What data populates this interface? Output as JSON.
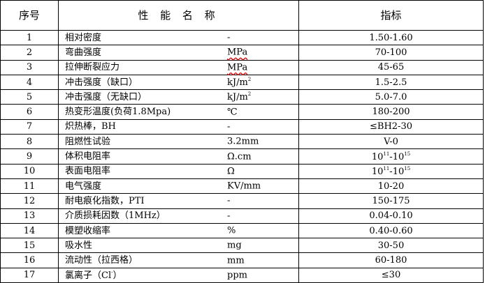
{
  "header": {
    "index": "序号",
    "property": "性 能 名 称",
    "spec": "指标"
  },
  "rows": [
    {
      "no": "1",
      "name": "相对密度",
      "unit": "-",
      "value": "1.50-1.60"
    },
    {
      "no": "2",
      "name": "弯曲强度",
      "unit": "MPa",
      "unit_spellcheck": true,
      "value": "70-100"
    },
    {
      "no": "3",
      "name": "拉伸断裂应力",
      "unit": "MPa",
      "unit_spellcheck": true,
      "value": "45-65"
    },
    {
      "no": "4",
      "name": "冲击强度（缺口）",
      "unit": "kJ/m",
      "unit_sup": "2",
      "value": "1.5-2.5"
    },
    {
      "no": "5",
      "name": "冲击强度（无缺口）",
      "unit": "kJ/m",
      "unit_sup": "2",
      "value": "5.0-7.0"
    },
    {
      "no": "6",
      "name": "热变形温度(负荷1.8Mpa)",
      "unit": "℃",
      "value": "180-200"
    },
    {
      "no": "7",
      "name": "炽热棒，BH",
      "unit": "-",
      "value": "≤BH2-30"
    },
    {
      "no": "8",
      "name": "阻燃性试验",
      "unit": "3.2mm",
      "value": "V-0"
    },
    {
      "no": "9",
      "name": "体积电阻率",
      "unit": "Ω.cm",
      "value_parts": [
        [
          "10",
          "11"
        ],
        [
          "-10",
          "15"
        ]
      ]
    },
    {
      "no": "10",
      "name": "表面电阻率",
      "unit": "Ω",
      "value_parts": [
        [
          "10",
          "11"
        ],
        [
          "-10",
          "15"
        ]
      ]
    },
    {
      "no": "11",
      "name": "电气强度",
      "unit": "KV/mm",
      "value": "10-20"
    },
    {
      "no": "12",
      "name": "耐电痕化指数，PTI",
      "unit": "-",
      "value": "150-175"
    },
    {
      "no": "13",
      "name": "介质损耗因数（1MHz）",
      "unit": "-",
      "value": "0.04-0.10"
    },
    {
      "no": "14",
      "name": "模塑收缩率",
      "unit": "%",
      "value": "0.40-0.60"
    },
    {
      "no": "15",
      "name": "吸水性",
      "unit": "mg",
      "value": "30-50"
    },
    {
      "no": "16",
      "name": "流动性（拉西格）",
      "unit": "mm",
      "value": "60-180"
    },
    {
      "no": "17",
      "name": "氯离子（Cl",
      "name_sup": "-",
      "name_tail": "）",
      "unit": "ppm",
      "value": "≤30"
    }
  ]
}
